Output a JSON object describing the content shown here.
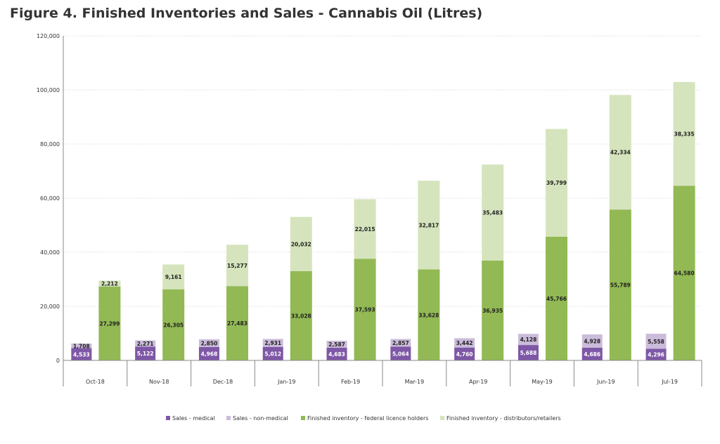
{
  "title": "Figure 4. Finished Inventories and Sales - Cannabis Oil (Litres)",
  "colors": {
    "sales_medical": "#7e57a6",
    "sales_non_medical": "#cbbcdb",
    "fed_inventory": "#92b954",
    "dist_inventory": "#d5e4bd"
  },
  "chart_data": {
    "type": "bar",
    "title": "Figure 4. Finished Inventories and Sales - Cannabis Oil (Litres)",
    "xlabel": "",
    "ylabel": "",
    "ylim": [
      0,
      120000
    ],
    "yticks": [
      0,
      20000,
      40000,
      60000,
      80000,
      100000,
      120000
    ],
    "ytick_labels": [
      "0",
      "20,000",
      "40,000",
      "60,000",
      "80,000",
      "100,000",
      "120,000"
    ],
    "grid": true,
    "legend_position": "bottom",
    "categories": [
      "Oct-18",
      "Nov-18",
      "Dec-18",
      "Jan-19",
      "Feb-19",
      "Mar-19",
      "Apr-19",
      "May-19",
      "Jun-19",
      "Jul-19"
    ],
    "series": [
      {
        "name": "Sales - medical",
        "stack": "sales",
        "values": [
          4533,
          5122,
          4968,
          5012,
          4683,
          5064,
          4760,
          5688,
          4686,
          4296
        ]
      },
      {
        "name": "Sales - non-medical",
        "stack": "sales",
        "values": [
          1708,
          2271,
          2850,
          2931,
          2587,
          2857,
          3442,
          4128,
          4928,
          5558
        ]
      },
      {
        "name": "Finished inventory - federal licence holders",
        "stack": "inventory",
        "values": [
          27299,
          26305,
          27483,
          33028,
          37593,
          33628,
          36935,
          45766,
          55789,
          64580
        ]
      },
      {
        "name": "Finished inventory - distributors/retailers",
        "stack": "inventory",
        "values": [
          2212,
          9161,
          15277,
          20032,
          22015,
          32817,
          35483,
          39799,
          42334,
          38335
        ]
      }
    ],
    "value_labels": {
      "sales_medical": [
        "4,533",
        "5,122",
        "4,968",
        "5,012",
        "4,683",
        "5,064",
        "4,760",
        "5,688",
        "4,686",
        "4,296"
      ],
      "sales_non_medical": [
        "1,708",
        "2,271",
        "2,850",
        "2,931",
        "2,587",
        "2,857",
        "3,442",
        "4,128",
        "4,928",
        "5,558"
      ],
      "fed_inventory": [
        "27,299",
        "26,305",
        "27,483",
        "33,028",
        "37,593",
        "33,628",
        "36,935",
        "45,766",
        "55,789",
        "64,580"
      ],
      "dist_inventory": [
        "2,212",
        "9,161",
        "15,277",
        "20,032",
        "22,015",
        "32,817",
        "35,483",
        "39,799",
        "42,334",
        "38,335"
      ]
    },
    "legend": [
      "Sales - medical",
      "Sales - non-medical",
      "Finished inventory - federal licence holders",
      "Finished inventory - distributors/retailers"
    ]
  }
}
